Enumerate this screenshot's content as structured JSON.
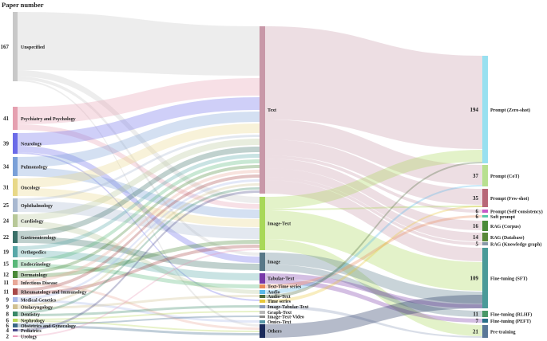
{
  "header": {
    "title": "Paper number"
  },
  "specialties": [
    {
      "count": "167",
      "name": "Unspecified",
      "color": "#c8c8c8"
    },
    {
      "count": "41",
      "name": "Psychiatry and Psychology",
      "color": "#e5a0b0"
    },
    {
      "count": "39",
      "name": "Neurology",
      "color": "#6b6be8"
    },
    {
      "count": "34",
      "name": "Pulmonology",
      "color": "#7aa0d8"
    },
    {
      "count": "31",
      "name": "Oncology",
      "color": "#e8d888"
    },
    {
      "count": "25",
      "name": "Ophthalmology",
      "color": "#a8b8d0"
    },
    {
      "count": "24",
      "name": "Cardiology",
      "color": "#b8c898"
    },
    {
      "count": "22",
      "name": "Gastroenterology",
      "color": "#3a7068"
    },
    {
      "count": "19",
      "name": "Orthopedics",
      "color": "#58a8a8"
    },
    {
      "count": "15",
      "name": "Endocrinology",
      "color": "#58b878"
    },
    {
      "count": "12",
      "name": "Dermatology",
      "color": "#4a8a38"
    },
    {
      "count": "11",
      "name": "Infectious Disease",
      "color": "#e8a898"
    },
    {
      "count": "11",
      "name": "Rheumatology and Immunology",
      "color": "#a84848"
    },
    {
      "count": "9",
      "name": "Medical Genetics",
      "color": "#a8b8e8"
    },
    {
      "count": "9",
      "name": "Otolaryngology",
      "color": "#d0c090"
    },
    {
      "count": "8",
      "name": "Dentistry",
      "color": "#3a8868"
    },
    {
      "count": "6",
      "name": "Nephrology",
      "color": "#b8d858"
    },
    {
      "count": "6",
      "name": "Obstetrics and Gynecology",
      "color": "#3a6888"
    },
    {
      "count": "4",
      "name": "Pediatrics",
      "color": "#4a4a8a"
    },
    {
      "count": "2",
      "name": "Urology",
      "color": "#e898b8"
    }
  ],
  "modalities": [
    {
      "name": "Text",
      "color": "#c898a8"
    },
    {
      "name": "Image-Text",
      "color": "#a8d858"
    },
    {
      "name": "Image",
      "color": "#587888"
    },
    {
      "name": "Tabular-Text",
      "color": "#7838a8"
    },
    {
      "name": "Text-Time series",
      "color": "#e88858"
    },
    {
      "name": "Audio",
      "color": "#58b8e8"
    },
    {
      "name": "Audio-Text",
      "color": "#4a6a3a"
    },
    {
      "name": "Time series",
      "color": "#e8c838"
    },
    {
      "name": "Image-Tabular-Text",
      "color": "#8898b8"
    },
    {
      "name": "Graph-Text",
      "color": "#b8b8b8"
    },
    {
      "name": "Image-Text-Video",
      "color": "#888888"
    },
    {
      "name": "Omics-Text",
      "color": "#5898a8"
    },
    {
      "name": "Others",
      "color": "#1a2a5a"
    }
  ],
  "methods": [
    {
      "count": "194",
      "name": "Prompt (Zero-shot)",
      "color": "#98e0f0"
    },
    {
      "count": "37",
      "name": "Prompt (CoT)",
      "color": "#b8e090"
    },
    {
      "count": "35",
      "name": "Prompt (Few-shot)",
      "color": "#b86878"
    },
    {
      "count": "6",
      "name": "Prompt (Self-consistency)",
      "color": "#c858c8"
    },
    {
      "count": "6",
      "name": "Soft prompt",
      "color": "#58c8a8"
    },
    {
      "count": "16",
      "name": "RAG (Corpus)",
      "color": "#4a8a38"
    },
    {
      "count": "14",
      "name": "RAG (Database)",
      "color": "#588838"
    },
    {
      "count": "5",
      "name": "RAG (Knowledge graph)",
      "color": "#8898a8"
    },
    {
      "count": "109",
      "name": "Fine-tuning (SFT)",
      "color": "#4a9a98"
    },
    {
      "count": "11",
      "name": "Fine-tuning (RLHF)",
      "color": "#489868"
    },
    {
      "count": "7",
      "name": "Fine-tuning (PEFT)",
      "color": "#2a7088"
    },
    {
      "count": "21",
      "name": "Pre-training",
      "color": "#5a7898"
    }
  ]
}
